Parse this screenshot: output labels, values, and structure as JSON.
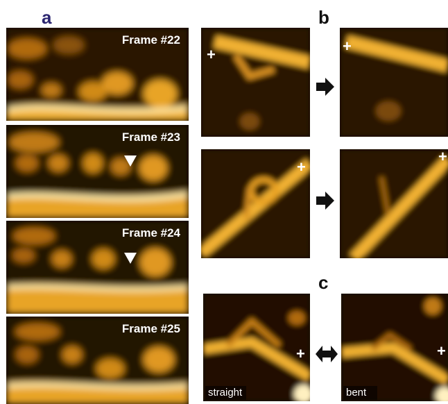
{
  "panels": {
    "a": "a",
    "b": "b",
    "c": "c"
  },
  "frames": [
    {
      "label": "Frame #22"
    },
    {
      "label": "Frame #23"
    },
    {
      "label": "Frame #24"
    },
    {
      "label": "Frame #25"
    }
  ],
  "cross_symbol": "+",
  "captions": {
    "straight": "straight",
    "bent": "bent"
  },
  "colors": {
    "background": "#120800",
    "filament": "#f0a020",
    "highlight": "#fff2c0",
    "panel_letter_a": "#2b2570",
    "panel_letter_bc": "#111111"
  }
}
